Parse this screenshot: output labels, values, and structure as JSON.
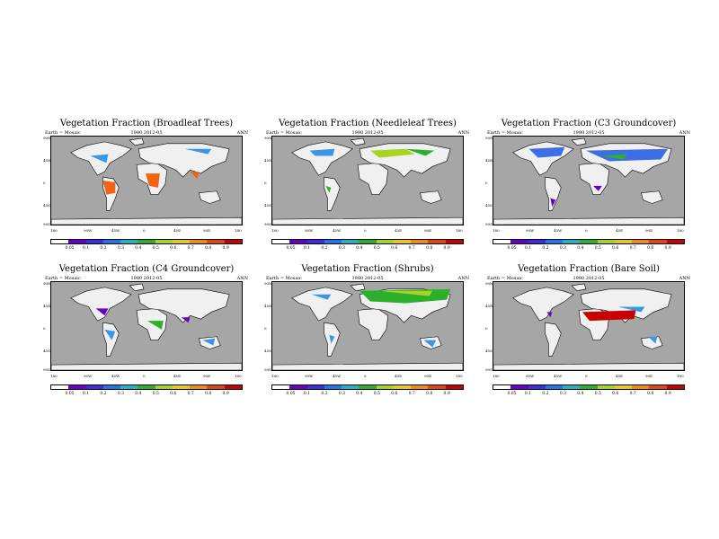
{
  "subtitle_left": "Earth = Mosaic",
  "subtitle_center": "1980 2012-05",
  "subtitle_right": "ANN",
  "lat_labels": [
    "90N",
    "45N",
    "0",
    "45S",
    "90S"
  ],
  "lon_labels": [
    "180",
    "90W",
    "45W",
    "0",
    "45E",
    "90E",
    "180"
  ],
  "colorbar_ticks": [
    "0.05",
    "0.1",
    "0.2",
    "0.3",
    "0.4",
    "0.5",
    "0.6",
    "0.7",
    "0.8",
    "0.9"
  ],
  "colorbar_colors": [
    "#ffffff",
    "#6a00c8",
    "#3a2ee0",
    "#1c78e6",
    "#1fb4c8",
    "#2cb02c",
    "#a8d420",
    "#e6c81e",
    "#f08c14",
    "#e0460e",
    "#c80000"
  ],
  "ocean_color": "#a6a6a6",
  "land_color": "#f0f0f0",
  "panels": [
    {
      "title": "Vegetation Fraction (Broadleaf Trees)",
      "highlight": [
        "#f06414",
        "#3c96e6",
        "#2cb02c"
      ]
    },
    {
      "title": "Vegetation Fraction (Needleleaf Trees)",
      "highlight": [
        "#a8d420",
        "#3c96e6",
        "#2cb02c"
      ]
    },
    {
      "title": "Vegetation Fraction (C3 Groundcover)",
      "highlight": [
        "#3c6ee6",
        "#6a00c8",
        "#2cb02c"
      ]
    },
    {
      "title": "Vegetation Fraction (C4 Groundcover)",
      "highlight": [
        "#6a00c8",
        "#3c96e6",
        "#2cb02c"
      ]
    },
    {
      "title": "Vegetation Fraction (Shrubs)",
      "highlight": [
        "#2cb02c",
        "#a8d420",
        "#3c96e6"
      ]
    },
    {
      "title": "Vegetation Fraction (Bare Soil)",
      "highlight": [
        "#c80000",
        "#3c96e6",
        "#6a00c8"
      ]
    }
  ]
}
